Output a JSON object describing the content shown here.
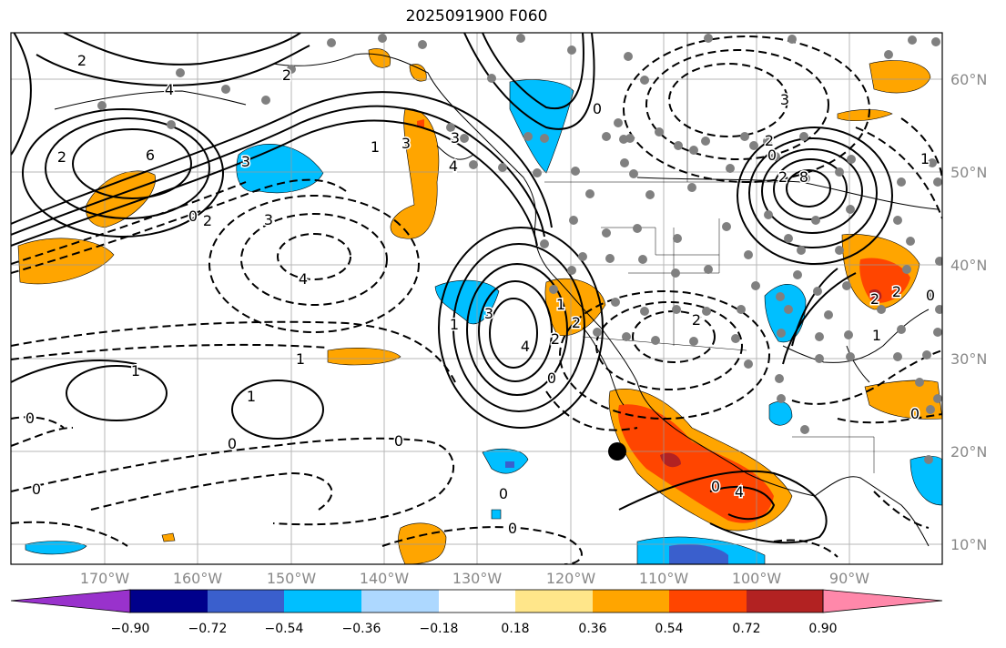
{
  "title": "2025091900 F060",
  "lat_labels": [
    "60°N",
    "50°N",
    "40°N",
    "30°N",
    "20°N",
    "10°N"
  ],
  "lon_labels": [
    "170°W",
    "160°W",
    "150°W",
    "140°W",
    "130°W",
    "120°W",
    "110°W",
    "100°W",
    "90°W"
  ],
  "colorbar": {
    "ticks": [
      "−0.90",
      "−0.72",
      "−0.54",
      "−0.36",
      "−0.18",
      "0.18",
      "0.36",
      "0.54",
      "0.72",
      "0.90"
    ],
    "colors": [
      "#9932cc",
      "#00008b",
      "#3a5fcd",
      "#00bfff",
      "#add8ff",
      "#ffffff",
      "#ffe68a",
      "#ffa500",
      "#ff4500",
      "#b22222",
      "#ff88aa"
    ]
  },
  "contour_labels": [
    "2",
    "4",
    "6",
    "2",
    "3",
    "3",
    "2",
    "0",
    "1",
    "2",
    "3",
    "4",
    "1",
    "0",
    "1",
    "0",
    "0",
    "0",
    "0",
    "1",
    "2",
    "3",
    "4",
    "1",
    "0",
    "4",
    "3",
    "2",
    "1",
    "0",
    "3",
    "8",
    "2",
    "0",
    "2",
    "1",
    "1",
    "0",
    "2",
    "0",
    "0",
    "4",
    "2",
    "0",
    "2"
  ],
  "colors": {
    "orange": "#ffa500",
    "red_orange": "#ff4500",
    "dark_red": "#b22222",
    "sky": "#00bfff",
    "royal": "#3a5fcd",
    "station_dot": "#808080",
    "marker": "#000000"
  }
}
